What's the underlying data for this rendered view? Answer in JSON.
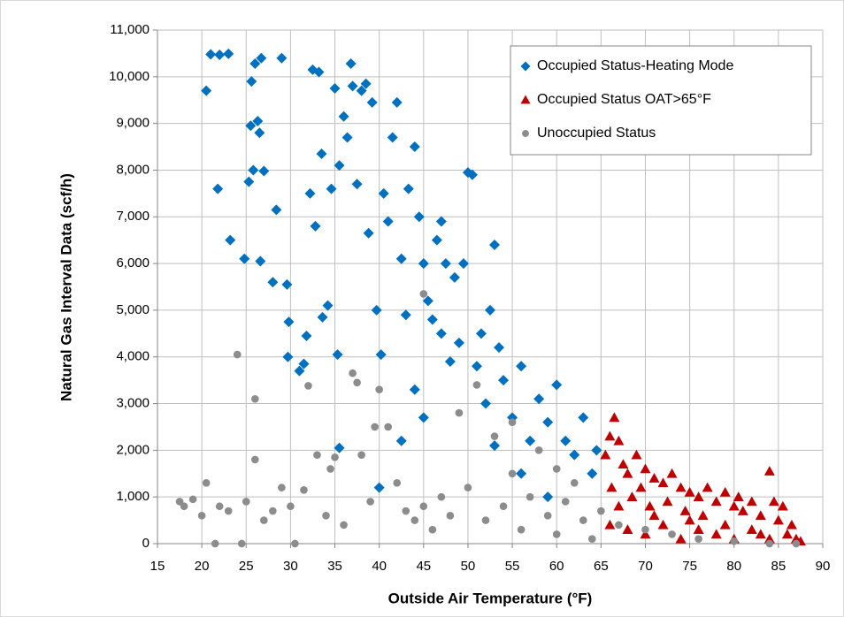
{
  "chart_data": {
    "type": "scatter",
    "xlabel": "Outside Air Temperature (°F)",
    "ylabel": "Natural Gas Interval Data (scf/h)",
    "xlim": [
      15,
      90
    ],
    "xticks": [
      15,
      20,
      25,
      30,
      35,
      40,
      45,
      50,
      55,
      60,
      65,
      70,
      75,
      80,
      85,
      90
    ],
    "ylim": [
      0,
      11000
    ],
    "yticks": [
      0,
      {
        "value": 1000,
        "label": "1,000"
      },
      {
        "value": 2000,
        "label": "2,000"
      },
      {
        "value": 3000,
        "label": "3,000"
      },
      {
        "value": 4000,
        "label": "4,000"
      },
      {
        "value": 5000,
        "label": "5,000"
      },
      {
        "value": 6000,
        "label": "6,000"
      },
      {
        "value": 7000,
        "label": "7,000"
      },
      {
        "value": 8000,
        "label": "8,000"
      },
      {
        "value": 9000,
        "label": "9,000"
      },
      {
        "value": 10000,
        "label": "10,000"
      },
      {
        "value": 11000,
        "label": "11,000"
      }
    ],
    "grid": true,
    "legend": "upper right",
    "series": [
      {
        "name": "Occupied Status-Heating Mode",
        "color": "#0070c0",
        "marker": "diamond",
        "x": [
          20.5,
          21,
          22,
          23,
          21.8,
          23.2,
          24.8,
          25.3,
          25.5,
          25.6,
          25.8,
          26,
          26.3,
          26.5,
          26.7,
          26.6,
          27,
          28.4,
          28,
          29,
          29.6,
          29.8,
          29.7,
          31,
          31.5,
          31.8,
          32.2,
          32.5,
          32.8,
          33.2,
          33.5,
          33.6,
          34.2,
          34.6,
          35,
          35.3,
          35.5,
          36,
          36.4,
          36.8,
          37,
          37.5,
          38,
          38.5,
          38.8,
          39.2,
          39.7,
          40.2,
          40.5,
          41,
          41.5,
          42,
          42.5,
          43,
          43.3,
          44,
          44.5,
          45,
          45.5,
          46,
          46.5,
          47,
          47.5,
          48,
          48.5,
          49,
          49.5,
          50,
          50.5,
          51,
          51.5,
          52,
          52.5,
          53,
          53.5,
          54,
          55,
          56,
          57,
          58,
          59,
          60,
          61,
          62,
          63,
          64,
          64.5,
          45,
          42.5,
          40,
          35.5,
          44,
          47,
          53,
          56,
          59
        ],
        "values": [
          9700,
          10480,
          10470,
          10490,
          7600,
          6500,
          6100,
          7750,
          8950,
          9900,
          8000,
          10280,
          9050,
          8800,
          10400,
          6050,
          7980,
          7150,
          5600,
          10400,
          5550,
          4750,
          4000,
          3700,
          3850,
          4450,
          7500,
          10150,
          6800,
          10100,
          8350,
          4850,
          5100,
          7600,
          9750,
          4050,
          8100,
          9150,
          8700,
          10280,
          9800,
          7700,
          9700,
          9850,
          6650,
          9450,
          5000,
          4050,
          7500,
          6900,
          8700,
          9450,
          6100,
          4900,
          7600,
          8500,
          7000,
          6000,
          5200,
          4800,
          6500,
          6900,
          6000,
          3900,
          5700,
          4300,
          6000,
          7950,
          7900,
          3800,
          4500,
          3000,
          5000,
          6400,
          4200,
          3500,
          2700,
          3800,
          2200,
          3100,
          2600,
          3400,
          2200,
          1900,
          2700,
          1500,
          2000,
          2700,
          2200,
          1200,
          2050,
          3300,
          4500,
          2100,
          1500,
          1000
        ]
      },
      {
        "name": "Occupied Status OAT>65°F",
        "color": "#c00000",
        "marker": "triangle",
        "x": [
          65.5,
          66,
          66.5,
          67,
          66.2,
          67.5,
          68,
          68.5,
          69,
          69.5,
          70,
          70.5,
          71,
          72,
          72.5,
          73,
          74,
          74.5,
          75,
          76,
          76.5,
          77,
          78,
          79,
          80,
          80.5,
          81,
          82,
          83,
          84,
          84.5,
          85,
          85.5,
          86,
          86.5,
          87,
          87.5,
          66,
          68,
          70,
          72,
          74,
          76,
          78,
          80,
          82,
          84,
          67,
          71,
          75,
          79,
          83
        ],
        "values": [
          1900,
          2300,
          2700,
          2200,
          1200,
          1700,
          1500,
          1000,
          1900,
          1200,
          1600,
          800,
          1400,
          1300,
          900,
          1500,
          1200,
          700,
          1100,
          1000,
          600,
          1200,
          900,
          1100,
          800,
          1000,
          700,
          900,
          600,
          1550,
          900,
          500,
          800,
          200,
          400,
          100,
          50,
          400,
          300,
          200,
          400,
          100,
          300,
          200,
          100,
          300,
          100,
          800,
          600,
          500,
          400,
          200
        ]
      },
      {
        "name": "Unoccupied Status",
        "color": "#8c8c8c",
        "marker": "circle",
        "x": [
          17.5,
          18,
          19,
          20,
          20.5,
          21.5,
          22,
          23,
          24,
          24.5,
          25,
          26,
          26,
          27,
          28,
          29,
          30,
          30.5,
          31.5,
          32,
          33,
          34,
          34.5,
          35,
          36,
          37,
          37.5,
          38,
          39,
          39.5,
          40,
          41,
          42,
          43,
          44,
          45,
          45,
          46,
          47,
          48,
          49,
          50,
          51,
          52,
          53,
          54,
          55,
          56,
          57,
          58,
          59,
          60,
          61,
          62,
          63,
          64,
          65,
          67,
          70,
          73,
          76,
          80,
          84,
          87,
          60,
          55
        ],
        "values": [
          900,
          800,
          950,
          600,
          1300,
          0,
          800,
          700,
          4050,
          0,
          900,
          3100,
          1800,
          500,
          700,
          1200,
          800,
          0,
          1150,
          3380,
          1900,
          600,
          1600,
          1850,
          400,
          3650,
          3450,
          1900,
          900,
          2500,
          3300,
          2500,
          1300,
          700,
          500,
          5350,
          800,
          300,
          1000,
          600,
          2800,
          1200,
          3400,
          500,
          2300,
          800,
          1500,
          300,
          1000,
          2000,
          600,
          200,
          900,
          1300,
          500,
          100,
          700,
          400,
          300,
          200,
          100,
          50,
          0,
          0,
          1600,
          2600
        ]
      }
    ]
  }
}
